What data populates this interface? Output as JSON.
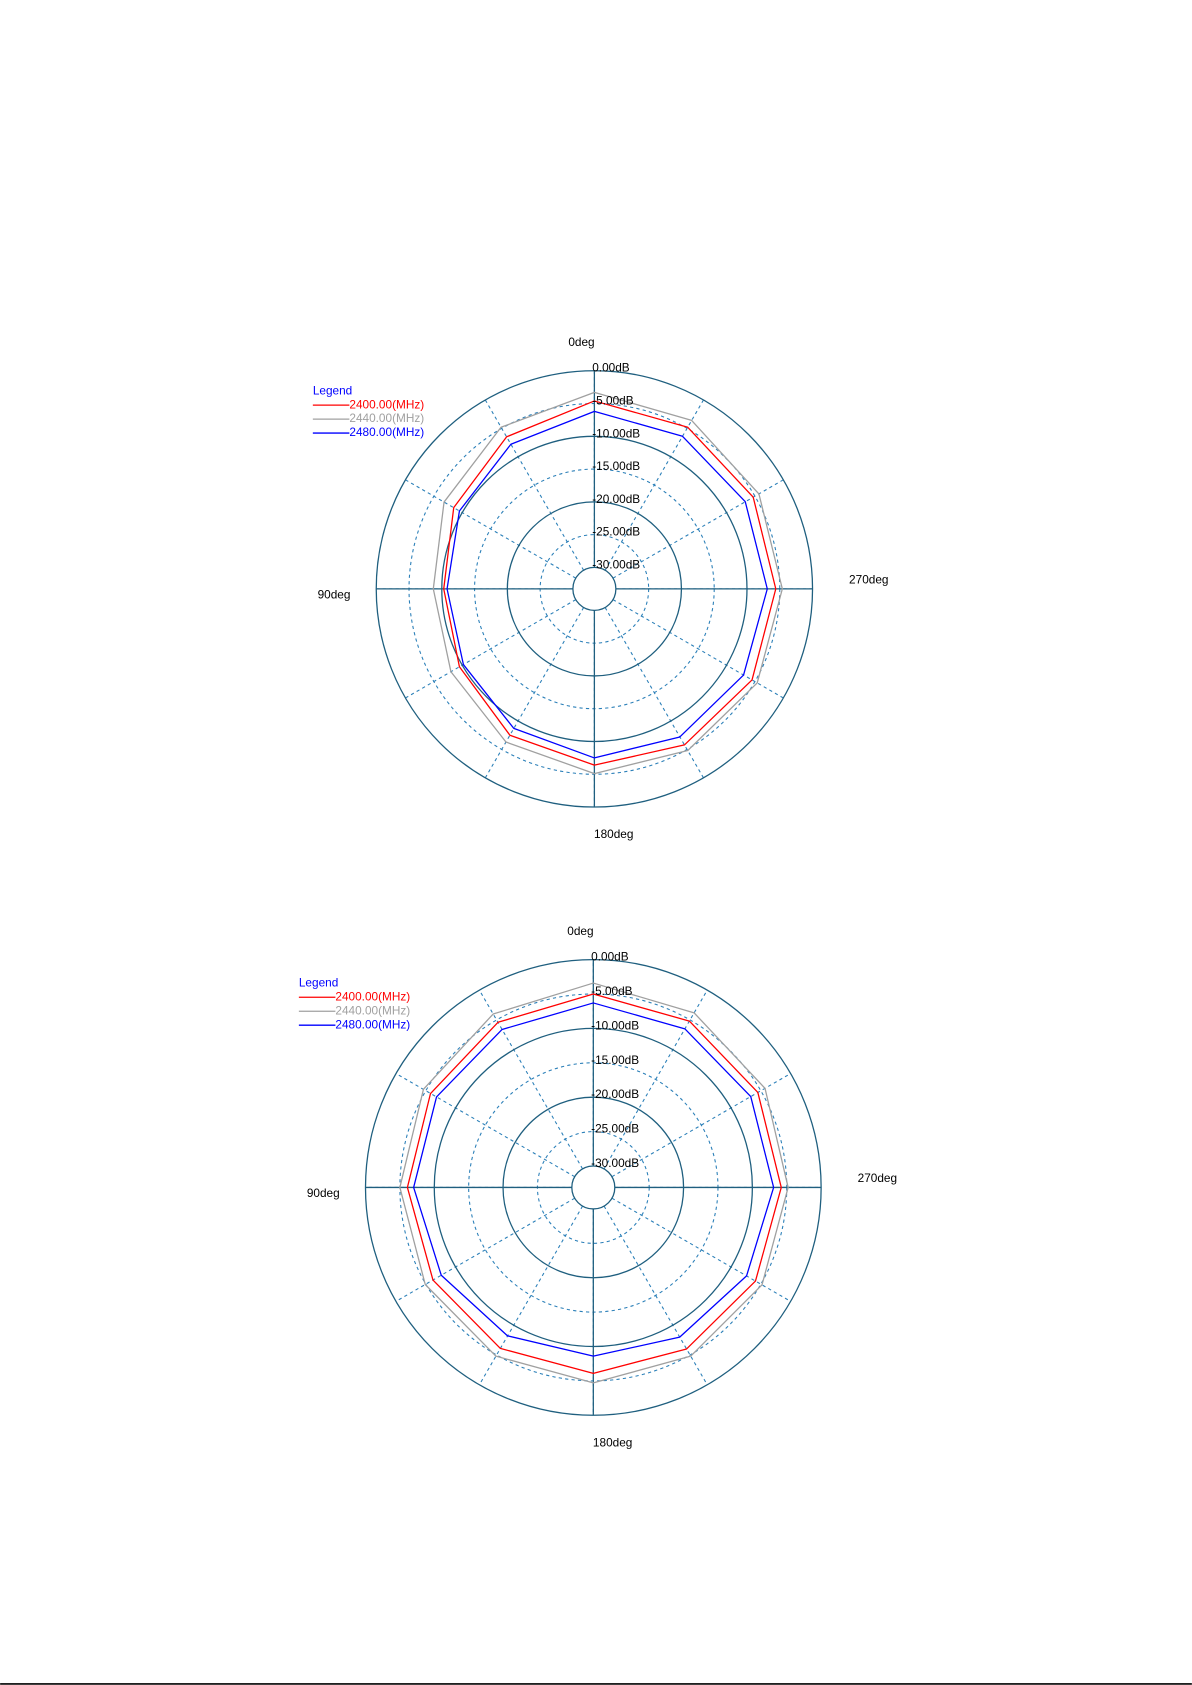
{
  "chart_data": [
    {
      "type": "polar",
      "legend_title": "Legend",
      "theta": [
        0,
        30,
        60,
        90,
        120,
        150,
        180,
        210,
        240,
        270,
        300,
        330
      ],
      "thetaticks": [
        {
          "value": 0,
          "label": "0deg"
        },
        {
          "value": 90,
          "label": "90deg"
        },
        {
          "value": 180,
          "label": "180deg"
        },
        {
          "value": 270,
          "label": "270deg"
        }
      ],
      "rlim": [
        -30,
        0
      ],
      "rticks": [
        {
          "value": 0,
          "label": "0.00dB"
        },
        {
          "value": -5,
          "label": "-5.00dB"
        },
        {
          "value": -10,
          "label": "-10.00dB"
        },
        {
          "value": -15,
          "label": "-15.00dB"
        },
        {
          "value": -20,
          "label": "-20.00dB"
        },
        {
          "value": -25,
          "label": "-25.00dB"
        },
        {
          "value": -30,
          "label": "-30.00dB"
        }
      ],
      "series": [
        {
          "name": "2400.00(MHz)",
          "color": "#ff0000",
          "values": [
            -4.6,
            -6.5,
            -8.5,
            -10.3,
            -9.5,
            -7.5,
            -6.4,
            -5.8,
            -5.5,
            -5.6,
            -5.3,
            -4.8
          ]
        },
        {
          "name": "2440.00(MHz)",
          "color": "#a0a0a0",
          "values": [
            -3.3,
            -4.8,
            -6.8,
            -8.7,
            -8.0,
            -6.3,
            -5.1,
            -4.8,
            -4.6,
            -4.6,
            -4.3,
            -3.6
          ]
        },
        {
          "name": "2480.00(MHz)",
          "color": "#0000ff",
          "values": [
            -6.2,
            -7.8,
            -9.5,
            -10.8,
            -10.2,
            -8.7,
            -7.5,
            -7.2,
            -7.0,
            -6.9,
            -6.7,
            -6.4
          ]
        }
      ]
    },
    {
      "type": "polar",
      "legend_title": "Legend",
      "theta": [
        0,
        30,
        60,
        90,
        120,
        150,
        180,
        210,
        240,
        270,
        300,
        330
      ],
      "thetaticks": [
        {
          "value": 0,
          "label": "0deg"
        },
        {
          "value": 90,
          "label": "90deg"
        },
        {
          "value": 180,
          "label": "180deg"
        },
        {
          "value": 270,
          "label": "270deg"
        }
      ],
      "rlim": [
        -30,
        0
      ],
      "rticks": [
        {
          "value": 0,
          "label": "0.00dB"
        },
        {
          "value": -5,
          "label": "-5.00dB"
        },
        {
          "value": -10,
          "label": "-10.00dB"
        },
        {
          "value": -15,
          "label": "-15.00dB"
        },
        {
          "value": -20,
          "label": "-20.00dB"
        },
        {
          "value": -25,
          "label": "-25.00dB"
        },
        {
          "value": -30,
          "label": "-30.00dB"
        }
      ],
      "series": [
        {
          "name": "2400.00(MHz)",
          "color": "#ff0000",
          "values": [
            -5.0,
            -5.4,
            -5.8,
            -6.1,
            -6.2,
            -6.1,
            -6.1,
            -6.0,
            -5.9,
            -5.8,
            -5.5,
            -5.2
          ]
        },
        {
          "name": "2440.00(MHz)",
          "color": "#a0a0a0",
          "values": [
            -3.4,
            -4.0,
            -4.6,
            -5.0,
            -4.9,
            -4.8,
            -4.7,
            -4.8,
            -4.8,
            -4.8,
            -4.3,
            -3.8
          ]
        },
        {
          "name": "2480.00(MHz)",
          "color": "#0000ff",
          "values": [
            -6.3,
            -6.6,
            -6.8,
            -7.0,
            -7.6,
            -8.2,
            -8.6,
            -8.0,
            -7.4,
            -6.9,
            -6.7,
            -6.5
          ]
        }
      ]
    }
  ]
}
